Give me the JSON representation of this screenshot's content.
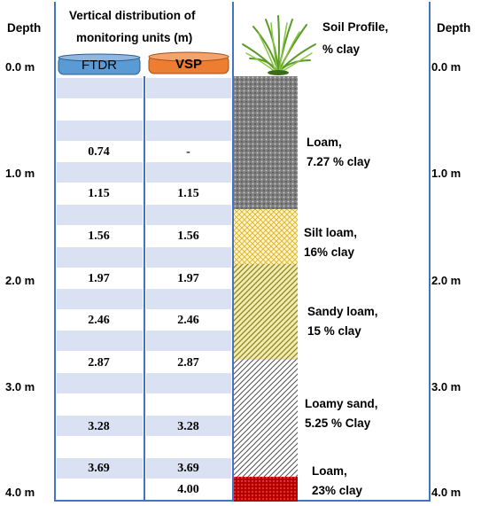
{
  "left_header": {
    "title": "Depth"
  },
  "right_header": {
    "title": "Depth"
  },
  "center_header": {
    "line1": "Vertical distribution of",
    "line2": "monitoring units (m)"
  },
  "soil_header": {
    "line1": "Soil Profile,",
    "line2": "% clay"
  },
  "units": [
    {
      "label": "FTDR",
      "color": "#5b9bd5"
    },
    {
      "label": "VSP",
      "color": "#ed7d31"
    }
  ],
  "depth_labels": [
    "0.0 m",
    "1.0 m",
    "2.0 m",
    "3.0 m",
    "4.0 m"
  ],
  "rows": [
    {
      "ftdr": "0.74",
      "vsp": "-"
    },
    {
      "ftdr": "1.15",
      "vsp": "1.15"
    },
    {
      "ftdr": "1.56",
      "vsp": "1.56"
    },
    {
      "ftdr": "1.97",
      "vsp": "1.97"
    },
    {
      "ftdr": "2.46",
      "vsp": "2.46"
    },
    {
      "ftdr": "2.87",
      "vsp": "2.87"
    },
    {
      "ftdr": "3.28",
      "vsp": "3.28"
    },
    {
      "ftdr": "3.69",
      "vsp": "3.69"
    },
    {
      "ftdr": "",
      "vsp": "4.00"
    }
  ],
  "layers": [
    {
      "name": "Loam,",
      "clay": "7.27 % clay",
      "pattern": "dots",
      "color": "#808080"
    },
    {
      "name": "Silt loam,",
      "clay": "16% clay",
      "pattern": "cross",
      "color": "#e6c84a"
    },
    {
      "name": "Sandy loam,",
      "clay": "15 % clay",
      "pattern": "diag",
      "color": "#c9c14c"
    },
    {
      "name": "Loamy sand,",
      "clay": "5.25 % Clay",
      "pattern": "diag",
      "color": "#555555"
    },
    {
      "name": "Loam,",
      "clay": "23% clay",
      "pattern": "dots",
      "color": "#c00000"
    }
  ]
}
